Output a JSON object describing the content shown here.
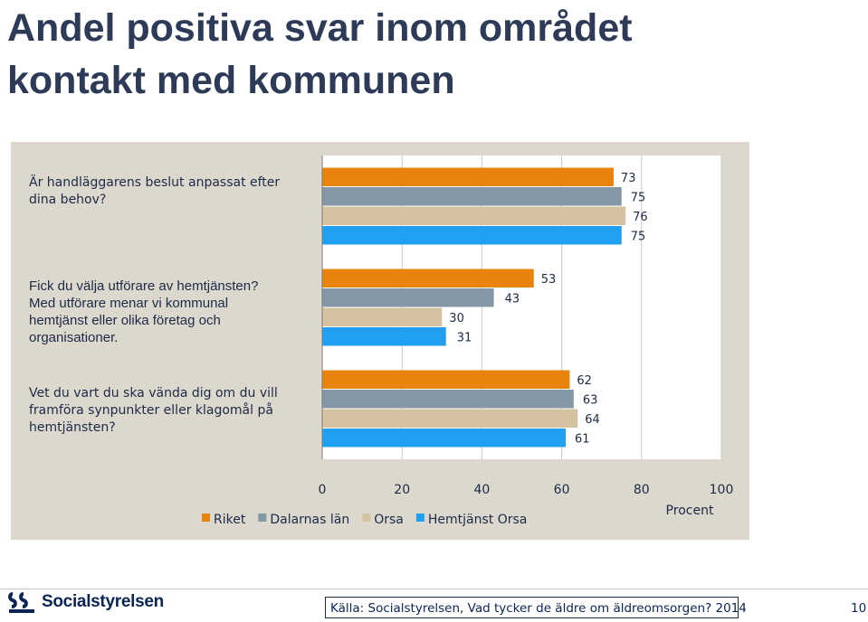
{
  "title_lines": [
    "Andel positiva svar inom området",
    "kontakt med kommunen"
  ],
  "chart_data": {
    "type": "bar",
    "orientation": "horizontal",
    "categories": [
      "Är handläggarens beslut anpassat efter dina behov?",
      "Fick du välja utförare av hemtjänsten? Med utförare menar vi kommunal hemtjänst eller olika företag och organisationer.",
      "Vet du vart du ska vända dig om du vill framföra synpunkter eller klagomål på hemtjänsten?"
    ],
    "series": [
      {
        "name": "Riket",
        "color": "#e8830b",
        "values": [
          73,
          53,
          62
        ]
      },
      {
        "name": "Dalarnas län",
        "color": "#8497a4",
        "values": [
          75,
          43,
          63
        ]
      },
      {
        "name": "Orsa",
        "color": "#d4c2a0",
        "values": [
          76,
          30,
          64
        ]
      },
      {
        "name": "Hemtjänst Orsa",
        "color": "#21a0f2",
        "values": [
          75,
          31,
          61
        ]
      }
    ],
    "xlabel": "Procent",
    "xlim": [
      0,
      100
    ],
    "xticks": [
      0,
      20,
      40,
      60,
      80,
      100
    ],
    "legend_position": "bottom-left"
  },
  "question_texts": [
    [
      "Är handläggarens beslut anpassat efter",
      "dina behov?"
    ],
    [
      "Fick du välja utförare av hemtjänsten?",
      "Med utförare menar vi kommunal",
      "hemtjänst eller olika företag och",
      "organisationer."
    ],
    [
      "Vet du vart du ska vända dig om du vill",
      "framföra synpunkter eller klagomål på",
      "hemtjänsten?"
    ]
  ],
  "footer": {
    "logo_text": "Socialstyrelsen",
    "source": "Källa: Socialstyrelsen, Vad tycker de äldre om äldreomsorgen? 2014",
    "page_number": "10"
  },
  "colors": {
    "title": "#2e3b58",
    "panel_bg": "#dcd8cd",
    "plot_bg": "#ffffff",
    "grid": "#c8c8c8"
  }
}
